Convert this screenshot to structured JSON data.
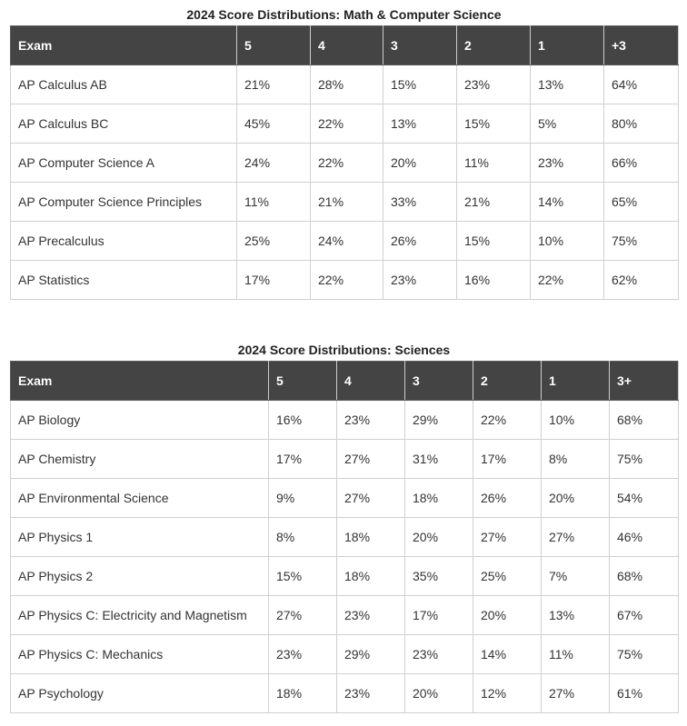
{
  "tables": [
    {
      "caption": "2024 Score Distributions: Math & Computer Science",
      "headers": [
        "Exam",
        "5",
        "4",
        "3",
        "2",
        "1",
        "+3"
      ],
      "rows": [
        [
          "AP Calculus AB",
          "21%",
          "28%",
          "15%",
          "23%",
          "13%",
          "64%"
        ],
        [
          "AP Calculus BC",
          "45%",
          "22%",
          "13%",
          "15%",
          "5%",
          "80%"
        ],
        [
          "AP Computer Science A",
          "24%",
          "22%",
          "20%",
          "11%",
          "23%",
          "66%"
        ],
        [
          "AP Computer Science Principles",
          "11%",
          "21%",
          "33%",
          "21%",
          "14%",
          "65%"
        ],
        [
          "AP Precalculus",
          "25%",
          "24%",
          "26%",
          "15%",
          "10%",
          "75%"
        ],
        [
          "AP Statistics",
          "17%",
          "22%",
          "23%",
          "16%",
          "22%",
          "62%"
        ]
      ]
    },
    {
      "caption": "2024 Score Distributions: Sciences",
      "headers": [
        "Exam",
        "5",
        "4",
        "3",
        "2",
        "1",
        "3+"
      ],
      "rows": [
        [
          "AP Biology",
          "16%",
          "23%",
          "29%",
          "22%",
          "10%",
          "68%"
        ],
        [
          "AP Chemistry",
          "17%",
          "27%",
          "31%",
          "17%",
          "8%",
          "75%"
        ],
        [
          "AP Environmental Science",
          "9%",
          "27%",
          "18%",
          "26%",
          "20%",
          "54%"
        ],
        [
          "AP Physics 1",
          "8%",
          "18%",
          "20%",
          "27%",
          "27%",
          "46%"
        ],
        [
          "AP Physics 2",
          "15%",
          "18%",
          "35%",
          "25%",
          "7%",
          "68%"
        ],
        [
          "AP Physics C: Electricity and Magnetism",
          "27%",
          "23%",
          "17%",
          "20%",
          "13%",
          "67%"
        ],
        [
          "AP Physics C: Mechanics",
          "23%",
          "29%",
          "23%",
          "14%",
          "11%",
          "75%"
        ],
        [
          "AP Psychology",
          "18%",
          "23%",
          "20%",
          "12%",
          "27%",
          "61%"
        ]
      ]
    }
  ]
}
